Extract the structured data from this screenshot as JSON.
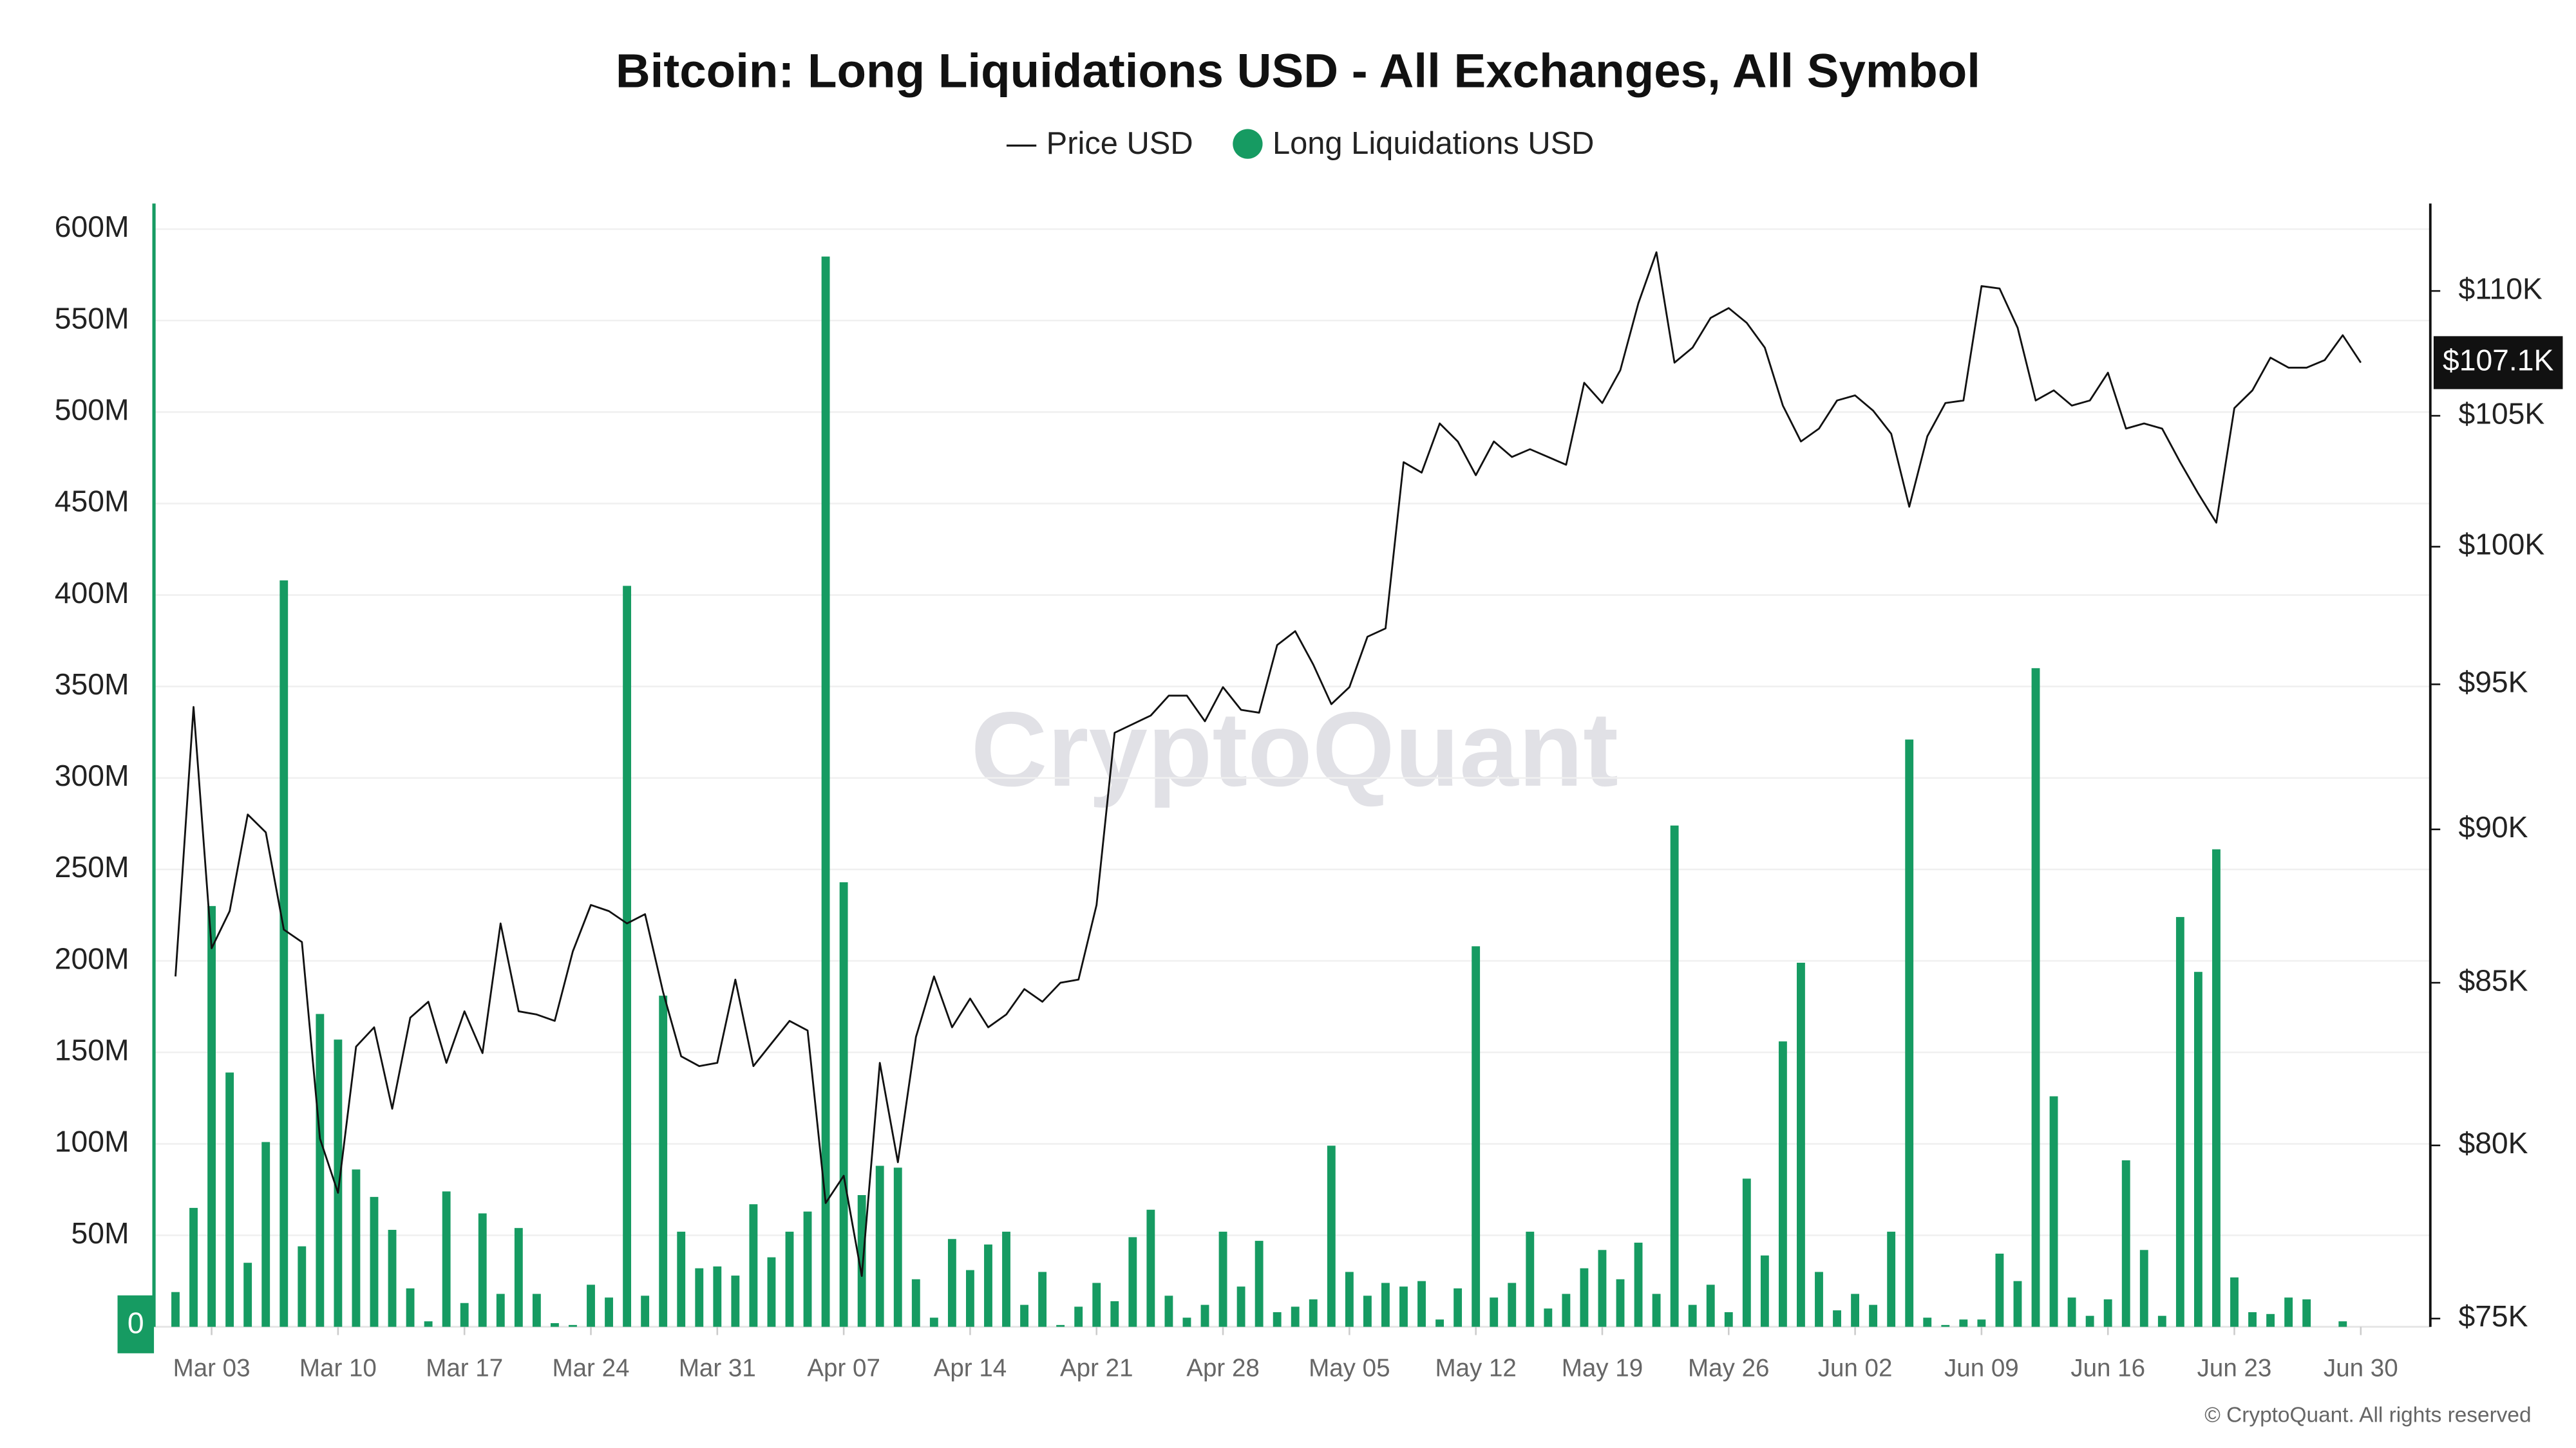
{
  "chart_data": {
    "type": "combo",
    "title": "Bitcoin: Long Liquidations USD - All Exchanges, All Symbol",
    "watermark": "CryptoQuant",
    "footer": "© CryptoQuant. All rights reserved",
    "last_price_label": "$107.1K",
    "categories": [
      null,
      null,
      "Mar 03",
      null,
      null,
      null,
      null,
      null,
      null,
      "Mar 10",
      null,
      null,
      null,
      null,
      null,
      null,
      "Mar 17",
      null,
      null,
      null,
      null,
      null,
      null,
      "Mar 24",
      null,
      null,
      null,
      null,
      null,
      null,
      "Mar 31",
      null,
      null,
      null,
      null,
      null,
      null,
      "Apr 07",
      null,
      null,
      null,
      null,
      null,
      null,
      "Apr 14",
      null,
      null,
      null,
      null,
      null,
      null,
      "Apr 21",
      null,
      null,
      null,
      null,
      null,
      null,
      "Apr 28",
      null,
      null,
      null,
      null,
      null,
      null,
      "May 05",
      null,
      null,
      null,
      null,
      null,
      null,
      "May 12",
      null,
      null,
      null,
      null,
      null,
      null,
      "May 19",
      null,
      null,
      null,
      null,
      null,
      null,
      "May 26",
      null,
      null,
      null,
      null,
      null,
      null,
      "Jun 02",
      null,
      null,
      null,
      null,
      null,
      null,
      "Jun 09",
      null,
      null,
      null,
      null,
      null,
      null,
      "Jun 16",
      null,
      null,
      null,
      null,
      null,
      null,
      "Jun 23",
      null,
      null,
      null,
      null,
      null,
      null,
      "Jun 30"
    ],
    "series": [
      {
        "name": "Price USD",
        "type": "line",
        "axis": "y2",
        "color": "#111111",
        "values": [
          85200,
          94200,
          86100,
          87300,
          90500,
          89900,
          86700,
          86300,
          80200,
          78600,
          83000,
          83600,
          81100,
          83900,
          84400,
          82500,
          84100,
          82800,
          86900,
          84100,
          84000,
          83800,
          86000,
          87500,
          87300,
          86900,
          87200,
          84700,
          82700,
          82400,
          82500,
          85100,
          82400,
          83100,
          83800,
          83500,
          78300,
          79100,
          76200,
          82500,
          79500,
          83300,
          85200,
          83600,
          84500,
          83600,
          84000,
          84800,
          84400,
          85000,
          85100,
          87500,
          93300,
          93600,
          93900,
          94600,
          94600,
          93700,
          94900,
          94100,
          94000,
          96400,
          96900,
          95700,
          94300,
          94900,
          96700,
          97000,
          103200,
          102800,
          104700,
          104000,
          102700,
          104000,
          103400,
          103700,
          103400,
          103100,
          106300,
          105500,
          106800,
          109500,
          111600,
          107100,
          107700,
          108900,
          109300,
          108700,
          107700,
          105400,
          104000,
          104500,
          105600,
          105800,
          105200,
          104300,
          101500,
          104200,
          105500,
          105600,
          110200,
          110100,
          108500,
          105600,
          106000,
          105400,
          105600,
          106700,
          104500,
          104700,
          104500,
          103200,
          102000,
          100900,
          105300,
          106000,
          107300,
          106900,
          106900,
          107200,
          108200,
          107100
        ]
      },
      {
        "name": "Long Liquidations USD",
        "type": "bar",
        "color": "#169b62",
        "values": [
          19000000,
          65000000,
          230000000,
          139000000,
          35000000,
          101000000,
          408000000,
          44000000,
          171000000,
          157000000,
          86000000,
          71000000,
          53000000,
          21000000,
          3000000,
          74000000,
          13000000,
          62000000,
          18000000,
          54000000,
          18000000,
          2000000,
          1000000,
          23000000,
          16000000,
          405000000,
          17000000,
          181000000,
          52000000,
          32000000,
          33000000,
          28000000,
          67000000,
          38000000,
          52000000,
          63000000,
          585000000,
          243000000,
          72000000,
          88000000,
          87000000,
          26000000,
          5000000,
          48000000,
          31000000,
          45000000,
          52000000,
          12000000,
          30000000,
          1000000,
          11000000,
          24000000,
          14000000,
          49000000,
          64000000,
          17000000,
          5000000,
          12000000,
          52000000,
          22000000,
          47000000,
          8000000,
          11000000,
          15000000,
          99000000,
          30000000,
          17000000,
          24000000,
          22000000,
          25000000,
          4000000,
          21000000,
          208000000,
          16000000,
          24000000,
          52000000,
          10000000,
          18000000,
          32000000,
          42000000,
          26000000,
          46000000,
          18000000,
          274000000,
          12000000,
          23000000,
          8000000,
          81000000,
          39000000,
          156000000,
          199000000,
          30000000,
          9000000,
          18000000,
          12000000,
          52000000,
          321000000,
          5000000,
          1000000,
          4000000,
          4000000,
          40000000,
          25000000,
          360000000,
          126000000,
          16000000,
          6000000,
          15000000,
          91000000,
          42000000,
          6000000,
          224000000,
          194000000,
          261000000,
          27000000,
          8000000,
          7000000,
          16000000,
          15000000,
          0,
          3000000,
          0
        ]
      }
    ],
    "ylim": [
      0,
      614000000
    ],
    "yticks": [
      0,
      {
        "value": 50000000,
        "label": "50M"
      },
      {
        "value": 100000000,
        "label": "100M"
      },
      {
        "value": 150000000,
        "label": "150M"
      },
      {
        "value": 200000000,
        "label": "200M"
      },
      {
        "value": 250000000,
        "label": "250M"
      },
      {
        "value": 300000000,
        "label": "300M"
      },
      {
        "value": 350000000,
        "label": "350M"
      },
      {
        "value": 400000000,
        "label": "400M"
      },
      {
        "value": 450000000,
        "label": "450M"
      },
      {
        "value": 500000000,
        "label": "500M"
      },
      {
        "value": 550000000,
        "label": "550M"
      },
      {
        "value": 600000000,
        "label": "600M"
      }
    ],
    "y2lim": [
      74770,
      113645
    ],
    "y2_log": true,
    "y2ticks": [
      {
        "value": 75000,
        "label": "$75K"
      },
      {
        "value": 80000,
        "label": "$80K"
      },
      {
        "value": 85000,
        "label": "$85K"
      },
      {
        "value": 90000,
        "label": "$90K"
      },
      {
        "value": 95000,
        "label": "$95K"
      },
      {
        "value": 100000,
        "label": "$100K"
      },
      {
        "value": 105000,
        "label": "$105K"
      },
      {
        "value": 110000,
        "label": "$110K"
      }
    ],
    "grid": true,
    "legend": "top"
  }
}
